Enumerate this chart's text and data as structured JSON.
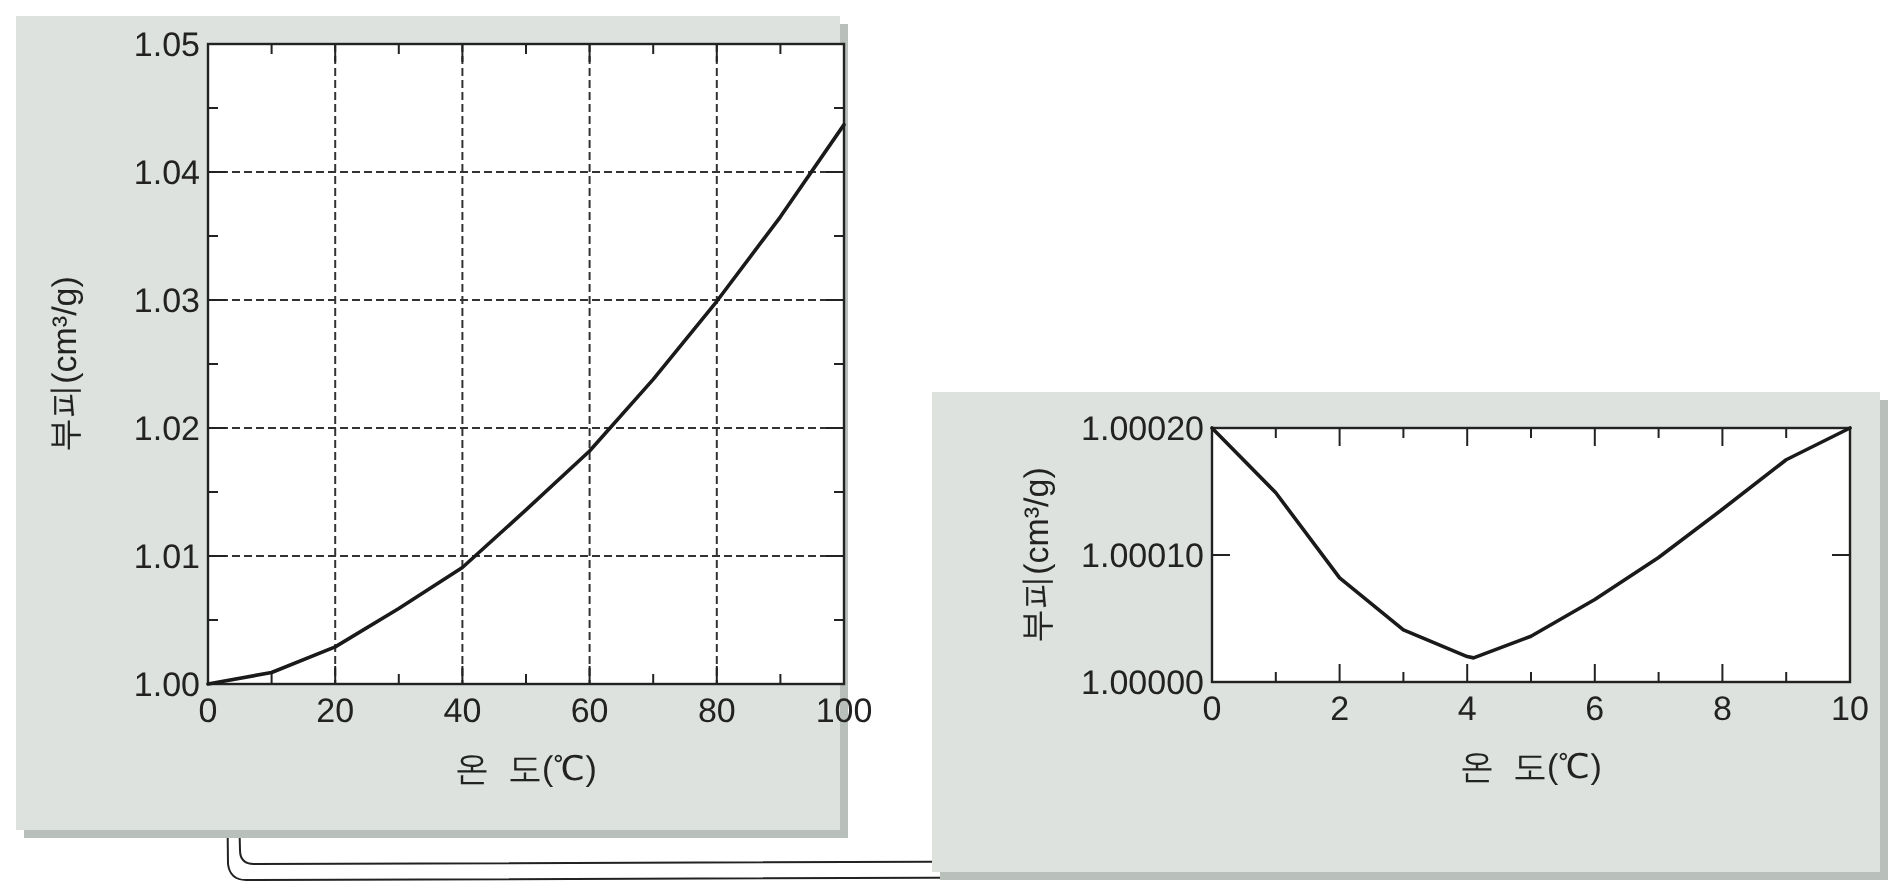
{
  "chart_data": [
    {
      "type": "line",
      "xlabel": "온  도(℃)",
      "ylabel": "부피(cm³/g)",
      "x": [
        0,
        10,
        20,
        30,
        40,
        50,
        60,
        70,
        80,
        90,
        100
      ],
      "series": [
        {
          "color": "#1a1a1a",
          "values": [
            1.0,
            1.0009,
            1.0029,
            1.0059,
            1.0091,
            1.0136,
            1.0182,
            1.0238,
            1.0299,
            1.0365,
            1.0437
          ]
        }
      ],
      "xlim": [
        0,
        100
      ],
      "ylim": [
        1.0,
        1.05
      ],
      "xticks": [
        0,
        {
          "value": 10,
          "label": null
        },
        20,
        {
          "value": 30,
          "label": null
        },
        40,
        {
          "value": 50,
          "label": null
        },
        60,
        {
          "value": 70,
          "label": null
        },
        80,
        {
          "value": 90,
          "label": null
        },
        100
      ],
      "yticks": [
        {
          "value": 1.0,
          "label": "1.00"
        },
        {
          "value": 1.005,
          "label": null
        },
        {
          "value": 1.01,
          "label": "1.01"
        },
        {
          "value": 1.015,
          "label": null
        },
        {
          "value": 1.02,
          "label": "1.02"
        },
        {
          "value": 1.025,
          "label": null
        },
        {
          "value": 1.03,
          "label": "1.03"
        },
        {
          "value": 1.035,
          "label": null
        },
        {
          "value": 1.04,
          "label": "1.04"
        },
        {
          "value": 1.045,
          "label": null
        },
        {
          "value": 1.05,
          "label": "1.05"
        }
      ],
      "grid": true,
      "line_style": "solid"
    },
    {
      "type": "line",
      "xlabel": "온  도(℃)",
      "ylabel": "부피(cm³/g)",
      "x": [
        0,
        1,
        2,
        3,
        4,
        4.1,
        5,
        6,
        7,
        8,
        9,
        10
      ],
      "series": [
        {
          "color": "#1a1a1a",
          "values": [
            1.0002,
            1.000149,
            1.000082,
            1.000041,
            1.00002,
            1.000019,
            1.000036,
            1.000065,
            1.000098,
            1.000136,
            1.000175,
            1.0002
          ]
        }
      ],
      "xlim": [
        0,
        10
      ],
      "ylim": [
        1.0,
        1.0002
      ],
      "xticks": [
        0,
        {
          "value": 1,
          "label": null
        },
        2,
        {
          "value": 3,
          "label": null
        },
        4,
        {
          "value": 5,
          "label": null
        },
        6,
        {
          "value": 7,
          "label": null
        },
        8,
        {
          "value": 9,
          "label": null
        },
        10
      ],
      "yticks": [
        {
          "value": 1.0,
          "label": "1.00000"
        },
        {
          "value": 1.0001,
          "label": "1.00010"
        },
        {
          "value": 1.0002,
          "label": "1.00020"
        }
      ],
      "line_style": "solid"
    }
  ]
}
